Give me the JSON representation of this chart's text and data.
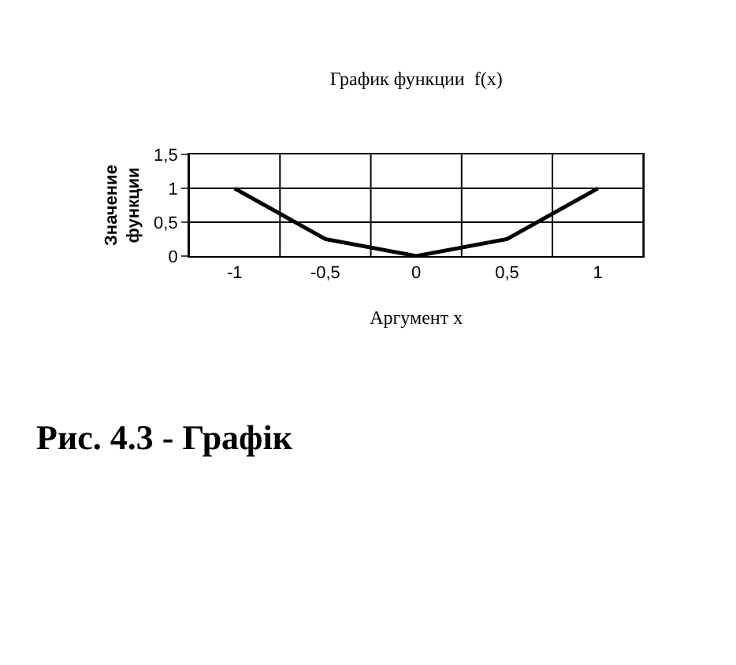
{
  "chart_data": {
    "type": "line",
    "title": "График функции  f(x)",
    "xlabel": "Аргумент x",
    "ylabel": "Значение функции",
    "categories": [
      "-1",
      "-0,5",
      "0",
      "0,5",
      "1"
    ],
    "series": [
      {
        "color": "#000000",
        "values": [
          1,
          0.25,
          0,
          0.25,
          1
        ]
      }
    ],
    "ylim": [
      0,
      1.5
    ],
    "yticks": [
      0,
      {
        "value": 0.5,
        "label": "0,5"
      },
      1,
      {
        "value": 1.5,
        "label": "1,5"
      }
    ],
    "grid": true,
    "legend": false,
    "marker": "none",
    "line_style": "solid",
    "annotations": [
      "Рис. 4.3 - Графік"
    ]
  }
}
